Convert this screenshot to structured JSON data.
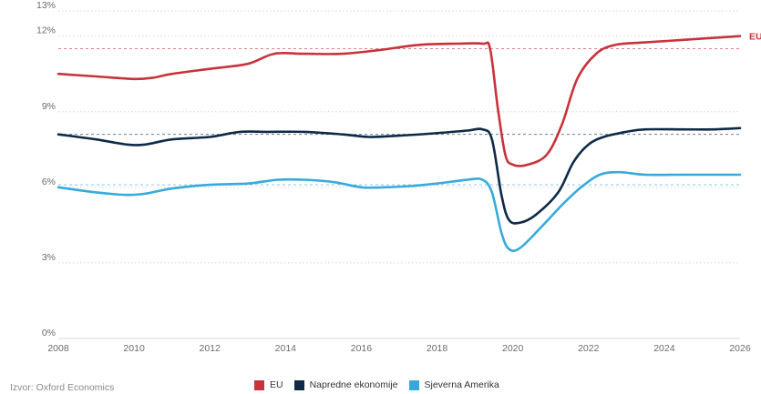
{
  "chart_data": {
    "type": "line",
    "xlim": [
      2008,
      2026
    ],
    "ylim": [
      0,
      13
    ],
    "x_ticks": [
      "2008",
      "2010",
      "2012",
      "2014",
      "2016",
      "2018",
      "2020",
      "2022",
      "2024",
      "2026"
    ],
    "y_ticks": [
      "0%",
      "3%",
      "6%",
      "9%",
      "12%",
      "13%"
    ],
    "grid": "horizontal dotted",
    "series": [
      {
        "name": "EU",
        "color": "#c8323b",
        "end_label": "EU",
        "reference_value": 11.5,
        "points": [
          [
            2008,
            10.5
          ],
          [
            2009,
            10.4
          ],
          [
            2010,
            10.3
          ],
          [
            2010.5,
            10.35
          ],
          [
            2011,
            10.5
          ],
          [
            2012,
            10.7
          ],
          [
            2013,
            10.9
          ],
          [
            2013.7,
            11.3
          ],
          [
            2014.5,
            11.3
          ],
          [
            2015.5,
            11.3
          ],
          [
            2016.5,
            11.45
          ],
          [
            2017.5,
            11.65
          ],
          [
            2018.5,
            11.7
          ],
          [
            2019.2,
            11.7
          ],
          [
            2019.4,
            11.5
          ],
          [
            2019.6,
            9.2
          ],
          [
            2019.8,
            7.3
          ],
          [
            2020,
            6.9
          ],
          [
            2020.4,
            6.9
          ],
          [
            2020.9,
            7.3
          ],
          [
            2021.3,
            8.5
          ],
          [
            2021.7,
            10.3
          ],
          [
            2022.2,
            11.3
          ],
          [
            2022.7,
            11.65
          ],
          [
            2023.5,
            11.75
          ],
          [
            2024.5,
            11.85
          ],
          [
            2025.5,
            11.95
          ],
          [
            2026,
            12.0
          ]
        ]
      },
      {
        "name": "Napredne ekonomije",
        "color": "#0e2a47",
        "reference_value": 8.1,
        "points": [
          [
            2008,
            8.1
          ],
          [
            2009,
            7.9
          ],
          [
            2009.8,
            7.7
          ],
          [
            2010.3,
            7.7
          ],
          [
            2011,
            7.9
          ],
          [
            2012,
            8.0
          ],
          [
            2012.8,
            8.2
          ],
          [
            2013.5,
            8.2
          ],
          [
            2014.5,
            8.2
          ],
          [
            2015.5,
            8.1
          ],
          [
            2016.2,
            8.0
          ],
          [
            2017,
            8.05
          ],
          [
            2018,
            8.15
          ],
          [
            2018.8,
            8.25
          ],
          [
            2019.2,
            8.3
          ],
          [
            2019.45,
            7.9
          ],
          [
            2019.7,
            5.7
          ],
          [
            2019.9,
            4.7
          ],
          [
            2020.2,
            4.6
          ],
          [
            2020.6,
            4.9
          ],
          [
            2021.2,
            5.8
          ],
          [
            2021.6,
            7.0
          ],
          [
            2022,
            7.7
          ],
          [
            2022.4,
            8.0
          ],
          [
            2023,
            8.2
          ],
          [
            2023.5,
            8.3
          ],
          [
            2024.5,
            8.3
          ],
          [
            2025.3,
            8.3
          ],
          [
            2026,
            8.35
          ]
        ]
      },
      {
        "name": "Sjeverna Amerika",
        "color": "#38a9dc",
        "reference_value": 6.1,
        "points": [
          [
            2008,
            6.0
          ],
          [
            2009,
            5.8
          ],
          [
            2009.8,
            5.7
          ],
          [
            2010.3,
            5.75
          ],
          [
            2011,
            5.95
          ],
          [
            2012,
            6.1
          ],
          [
            2013,
            6.15
          ],
          [
            2013.8,
            6.3
          ],
          [
            2014.5,
            6.3
          ],
          [
            2015.3,
            6.2
          ],
          [
            2016,
            6.0
          ],
          [
            2016.6,
            6.0
          ],
          [
            2017.3,
            6.05
          ],
          [
            2018,
            6.15
          ],
          [
            2018.8,
            6.3
          ],
          [
            2019.2,
            6.3
          ],
          [
            2019.45,
            5.8
          ],
          [
            2019.7,
            4.2
          ],
          [
            2019.9,
            3.55
          ],
          [
            2020.2,
            3.6
          ],
          [
            2020.8,
            4.5
          ],
          [
            2021.3,
            5.3
          ],
          [
            2021.8,
            6.0
          ],
          [
            2022.3,
            6.5
          ],
          [
            2022.8,
            6.6
          ],
          [
            2023.5,
            6.5
          ],
          [
            2024.5,
            6.5
          ],
          [
            2025.3,
            6.5
          ],
          [
            2026,
            6.5
          ]
        ]
      }
    ]
  },
  "footer": {
    "source": "Izvor: Oxford Economics"
  }
}
